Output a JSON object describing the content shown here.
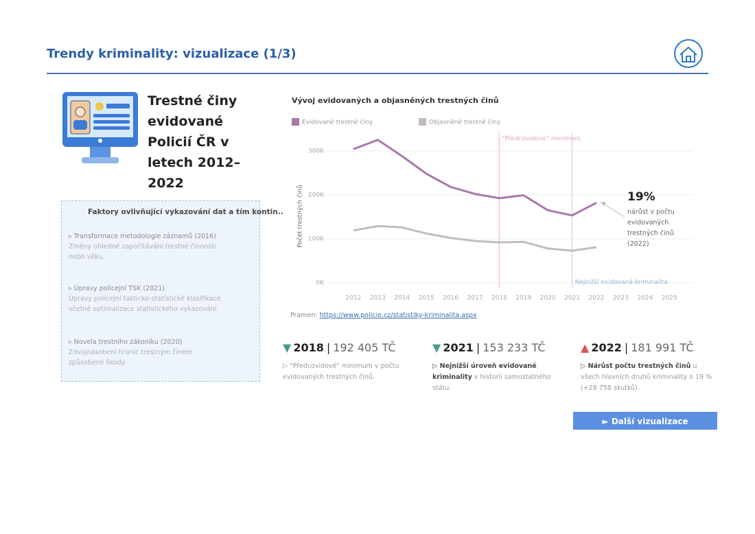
{
  "header": {
    "title": "Trendy kriminality: vizualizace (1/3)"
  },
  "intro": {
    "title": "Trestné činy evidované Policií ČR v letech 2012–2022"
  },
  "factors": {
    "heading": "Faktory ovlivňující vykazování dat a tím kontin..",
    "items": [
      {
        "title": "▹ Transformace metodologie záznamů (2016)",
        "text": "Změny ohledně započítávání trestné činnosti nebo věku."
      },
      {
        "title": "▹ Úpravy policejní TSK (2021)",
        "text": "Úpravy policejní takticko-statistické klasifikace včetně optimalizace statistického vykazování."
      },
      {
        "title": "▹ Novela trestního zákoníku (2020)",
        "text": "Zdvojnásobení hranic trestným činem způsobené škody."
      }
    ]
  },
  "chart_data": {
    "type": "line",
    "title": "Vývoj evidovaných a objasněných trestných činů",
    "y_label": "Počet trestných činů",
    "legend": "top-left",
    "grid": true,
    "categories": [
      "2012",
      "2013",
      "2014",
      "2015",
      "2016",
      "2017",
      "2018",
      "2019",
      "2020",
      "2021",
      "2022",
      "2023",
      "2024",
      "2025"
    ],
    "series": [
      {
        "name": "Evidované trestné činy",
        "color": "#a779a8",
        "values": [
          304000,
          325000,
          288000,
          248000,
          218000,
          202000,
          192405,
          199000,
          165000,
          153233,
          181991,
          null,
          null,
          null
        ]
      },
      {
        "name": "Objasněné trestné činy",
        "color": "#c3bcb8",
        "values": [
          119000,
          129000,
          126000,
          112000,
          102000,
          95000,
          92000,
          93000,
          78000,
          73000,
          81000,
          null,
          null,
          null
        ]
      }
    ],
    "ylim": [
      0,
      345000
    ],
    "yticks": [
      {
        "value": 0,
        "label": "0K"
      },
      {
        "value": 100000,
        "label": "100K"
      },
      {
        "value": 200000,
        "label": "200K"
      },
      {
        "value": 300000,
        "label": "300K"
      }
    ],
    "reference_lines": [
      {
        "category": "2018",
        "label": "\"Předcovidové\" minimum",
        "color": "#f0c8dd",
        "text_color": "#e3a3c6",
        "label_position": "top"
      },
      {
        "category": "2021",
        "label": "Nejnižší evidovaná kriminalita",
        "color": "#c9dbee",
        "text_color": "#8fb0d6",
        "label_position": "bottom"
      }
    ],
    "annotation": {
      "category": "2022",
      "series": 0,
      "value_label": "19%",
      "text_lines": [
        "nárůst v počtu",
        "evidovaných",
        "trestných činů",
        "(2022)"
      ]
    }
  },
  "source": {
    "prefix": "Pramen: ",
    "link": "https://www.policie.cz/statistiky-kriminalita.aspx"
  },
  "kpis": [
    {
      "arrow": "▼",
      "arrow_color": "#4a9a8c",
      "year": "2018",
      "value": "192 405 TČ",
      "parts": [
        {
          "text": "▷ \"Předcovidové\" minimum v počtu evidovaných trestných činů.",
          "bold": false
        }
      ]
    },
    {
      "arrow": "▼",
      "arrow_color": "#4a9a8c",
      "year": "2021",
      "value": "153 233 TČ",
      "parts": [
        {
          "text": "▷ Nejnižší úroveň evidované kriminality",
          "bold": true
        },
        {
          "text": " v historii samostatného státu.",
          "bold": false
        }
      ]
    },
    {
      "arrow": "▲",
      "arrow_color": "#d9534f",
      "year": "2022",
      "value": "181 991 TČ",
      "parts": [
        {
          "text": "▷ Nárůst počtu trestných činů",
          "bold": true
        },
        {
          "text": " u všech hlavních druhů kriminality o 19 % (+28 758 skutků).",
          "bold": false
        }
      ]
    }
  ],
  "button": {
    "label": "► Další vizualizace"
  }
}
